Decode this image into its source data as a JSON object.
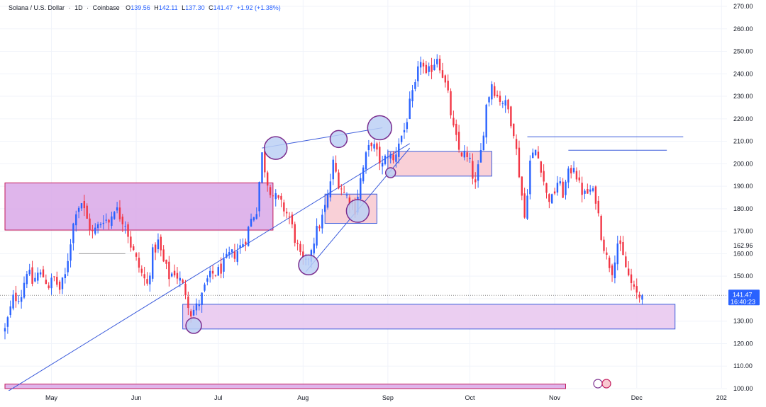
{
  "header": {
    "symbol": "Solana / U.S. Dollar",
    "interval": "1D",
    "exchange": "Coinbase",
    "open_label": "O",
    "open": "139.56",
    "high_label": "H",
    "high": "142.11",
    "low_label": "L",
    "low": "137.30",
    "close_label": "C",
    "close": "141.47",
    "change": "+1.92 (+1.38%)"
  },
  "price_badge": {
    "price": "141.47",
    "countdown": "16:40:23",
    "color": "#2962ff"
  },
  "extra_price_label": "162.96",
  "colors": {
    "up": "#2962ff",
    "down": "#f23645",
    "trendline": "#3b5bdb",
    "zone_magenta_fill": "#d9a8e8",
    "zone_magenta_border": "#c2185b",
    "zone_pink_fill": "#f8c8d0",
    "zone_pink_border": "#3b5bdb",
    "circle_fill": "#bcd0f5",
    "circle_border": "#7b2d8e"
  },
  "chart_data": {
    "type": "candlestick",
    "title": "Solana / U.S. Dollar · 1D · Coinbase",
    "ylim": [
      100,
      272
    ],
    "y_ticks": [
      "270.00",
      "260.00",
      "250.00",
      "240.00",
      "230.00",
      "220.00",
      "210.00",
      "200.00",
      "190.00",
      "180.00",
      "170.00",
      "160.00",
      "150.00",
      "140.00",
      "130.00",
      "120.00",
      "110.00",
      "100.00"
    ],
    "x_ticks": [
      {
        "label": "May",
        "day": 17
      },
      {
        "label": "Jun",
        "day": 48
      },
      {
        "label": "Jul",
        "day": 78
      },
      {
        "label": "Aug",
        "day": 109
      },
      {
        "label": "Sep",
        "day": 140
      },
      {
        "label": "Oct",
        "day": 170
      },
      {
        "label": "Nov",
        "day": 201
      },
      {
        "label": "Dec",
        "day": 231
      },
      {
        "label": "202",
        "day": 262
      }
    ],
    "x_domain": [
      0,
      264
    ],
    "anchors": [
      [
        0,
        126
      ],
      [
        3,
        140
      ],
      [
        6,
        142
      ],
      [
        8,
        153
      ],
      [
        10,
        147
      ],
      [
        12,
        151
      ],
      [
        14,
        150
      ],
      [
        16,
        146
      ],
      [
        18,
        149
      ],
      [
        20,
        144
      ],
      [
        22,
        150
      ],
      [
        24,
        166
      ],
      [
        26,
        180
      ],
      [
        28,
        183
      ],
      [
        30,
        175
      ],
      [
        32,
        169
      ],
      [
        34,
        172
      ],
      [
        36,
        176
      ],
      [
        38,
        174
      ],
      [
        40,
        181
      ],
      [
        42,
        177
      ],
      [
        44,
        174
      ],
      [
        46,
        164
      ],
      [
        48,
        157
      ],
      [
        50,
        151
      ],
      [
        52,
        146
      ],
      [
        54,
        160
      ],
      [
        56,
        165
      ],
      [
        58,
        156
      ],
      [
        60,
        150
      ],
      [
        62,
        152
      ],
      [
        64,
        148
      ],
      [
        66,
        143
      ],
      [
        68,
        134
      ],
      [
        70,
        136
      ],
      [
        72,
        141
      ],
      [
        74,
        148
      ],
      [
        76,
        151
      ],
      [
        78,
        152
      ],
      [
        80,
        155
      ],
      [
        82,
        159
      ],
      [
        84,
        160
      ],
      [
        86,
        163
      ],
      [
        88,
        167
      ],
      [
        90,
        175
      ],
      [
        92,
        180
      ],
      [
        94,
        204
      ],
      [
        96,
        192
      ],
      [
        98,
        186
      ],
      [
        100,
        183
      ],
      [
        102,
        180
      ],
      [
        104,
        176
      ],
      [
        106,
        167
      ],
      [
        108,
        158
      ],
      [
        110,
        155
      ],
      [
        112,
        163
      ],
      [
        114,
        170
      ],
      [
        116,
        176
      ],
      [
        118,
        185
      ],
      [
        120,
        200
      ],
      [
        122,
        192
      ],
      [
        124,
        187
      ],
      [
        126,
        184
      ],
      [
        128,
        180
      ],
      [
        130,
        193
      ],
      [
        132,
        203
      ],
      [
        134,
        210
      ],
      [
        136,
        204
      ],
      [
        138,
        199
      ],
      [
        140,
        205
      ],
      [
        142,
        201
      ],
      [
        144,
        210
      ],
      [
        146,
        215
      ],
      [
        148,
        226
      ],
      [
        150,
        234
      ],
      [
        152,
        247
      ],
      [
        154,
        238
      ],
      [
        156,
        243
      ],
      [
        158,
        248
      ],
      [
        160,
        240
      ],
      [
        162,
        230
      ],
      [
        164,
        215
      ],
      [
        166,
        206
      ],
      [
        168,
        204
      ],
      [
        170,
        200
      ],
      [
        172,
        190
      ],
      [
        174,
        205
      ],
      [
        176,
        226
      ],
      [
        178,
        236
      ],
      [
        180,
        230
      ],
      [
        182,
        228
      ],
      [
        184,
        224
      ],
      [
        186,
        215
      ],
      [
        188,
        196
      ],
      [
        190,
        176
      ],
      [
        192,
        201
      ],
      [
        194,
        206
      ],
      [
        196,
        199
      ],
      [
        198,
        186
      ],
      [
        200,
        184
      ],
      [
        202,
        192
      ],
      [
        204,
        187
      ],
      [
        206,
        195
      ],
      [
        208,
        200
      ],
      [
        210,
        190
      ],
      [
        212,
        186
      ],
      [
        214,
        188
      ],
      [
        216,
        185
      ],
      [
        218,
        169
      ],
      [
        220,
        158
      ],
      [
        222,
        153
      ],
      [
        224,
        165
      ],
      [
        226,
        158
      ],
      [
        228,
        150
      ],
      [
        230,
        143
      ],
      [
        232,
        141
      ],
      [
        233,
        141.5
      ]
    ],
    "horizontal_lines": [
      {
        "name": "resistance-oct",
        "y": 212,
        "from_day": 191,
        "to_day": 248
      },
      {
        "name": "resistance-nov",
        "y": 206,
        "from_day": 206,
        "to_day": 242
      },
      {
        "name": "support-may",
        "y": 160,
        "from_day": 27,
        "to_day": 44
      },
      {
        "name": "current-price",
        "y": 141.47,
        "from_day": 0,
        "to_day": 264
      }
    ],
    "zones": [
      {
        "name": "supply-zone-may",
        "style": "magenta",
        "y_top": 191.5,
        "y_bottom": 170.5,
        "from_day": 0,
        "to_day": 98
      },
      {
        "name": "demand-zone-aug",
        "style": "pink",
        "y_top": 186.5,
        "y_bottom": 173.5,
        "from_day": 117,
        "to_day": 136
      },
      {
        "name": "demand-zone-sep",
        "style": "pink",
        "y_top": 205.5,
        "y_bottom": 194.5,
        "from_day": 140,
        "to_day": 178
      },
      {
        "name": "demand-zone-nov",
        "style": "lilac",
        "y_top": 137.5,
        "y_bottom": 126.5,
        "from_day": 65,
        "to_day": 245
      },
      {
        "name": "bottom-zone",
        "style": "magenta",
        "y_top": 102,
        "y_bottom": 100,
        "from_day": 0,
        "to_day": 205
      }
    ],
    "trendlines": [
      {
        "name": "long-uptrend",
        "from": [
          0,
          98
        ],
        "to": [
          148,
          209
        ]
      },
      {
        "name": "channel-top",
        "from": [
          94,
          207
        ],
        "to": [
          138,
          216
        ]
      },
      {
        "name": "impulse-line",
        "from": [
          110,
          152
        ],
        "to": [
          148,
          207
        ]
      }
    ],
    "circles": [
      {
        "name": "touch-jul-high",
        "day": 99,
        "y": 207,
        "r": 16
      },
      {
        "name": "touch-aug-high",
        "day": 122,
        "y": 211,
        "r": 12
      },
      {
        "name": "touch-aug-top",
        "day": 137,
        "y": 216,
        "r": 17
      },
      {
        "name": "touch-aug-mid",
        "day": 129,
        "y": 179,
        "r": 16
      },
      {
        "name": "touch-aug-low",
        "day": 111,
        "y": 155,
        "r": 14
      },
      {
        "name": "touch-jun-low",
        "day": 69,
        "y": 128,
        "r": 11
      },
      {
        "name": "touch-sep-small",
        "day": 141,
        "y": 196,
        "r": 7
      }
    ]
  }
}
